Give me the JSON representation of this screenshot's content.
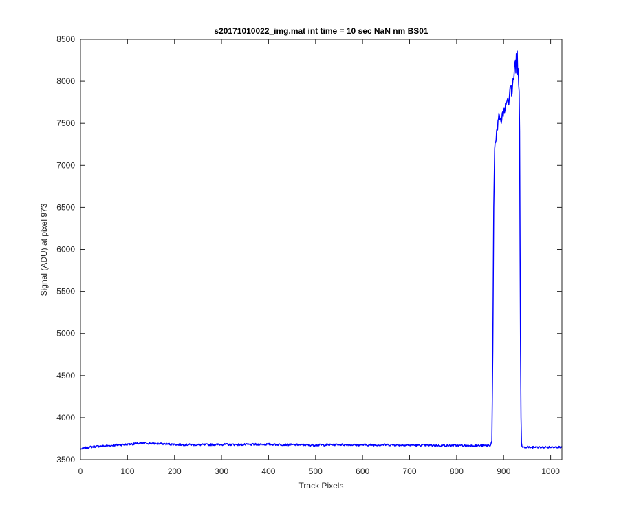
{
  "chart_data": {
    "type": "line",
    "title": "s20171010022_img.mat int time = 10 sec  NaN nm BS01",
    "xlabel": "Track Pixels",
    "ylabel": "Signal (ADU) at pixel 973",
    "xlim": [
      0,
      1024
    ],
    "ylim": [
      3500,
      8500
    ],
    "xticks": [
      0,
      100,
      200,
      300,
      400,
      500,
      600,
      700,
      800,
      900,
      1000
    ],
    "yticks": [
      3500,
      4000,
      4500,
      5000,
      5500,
      6000,
      6500,
      7000,
      7500,
      8000,
      8500
    ],
    "grid": false,
    "series_color": "#0000ff",
    "series": [
      {
        "x": [
          0,
          2,
          20,
          40,
          60,
          80,
          100,
          120,
          140,
          160,
          180,
          200,
          250,
          300,
          350,
          400,
          450,
          500,
          550,
          600,
          650,
          700,
          750,
          800,
          850,
          872,
          875,
          877,
          879,
          881,
          884,
          887,
          890,
          893,
          895,
          897,
          899,
          901,
          903,
          905,
          907,
          909,
          911,
          913,
          915,
          917,
          919,
          921,
          923,
          925,
          926,
          927,
          928,
          929,
          930,
          931,
          932,
          933,
          934,
          935,
          936,
          937,
          938,
          939,
          940,
          941,
          942,
          945,
          950,
          960,
          970,
          980,
          990,
          1000,
          1010,
          1020,
          1024
        ],
        "y": [
          3620,
          3630,
          3650,
          3660,
          3665,
          3675,
          3680,
          3690,
          3695,
          3690,
          3685,
          3680,
          3675,
          3680,
          3678,
          3682,
          3676,
          3672,
          3678,
          3674,
          3676,
          3672,
          3670,
          3668,
          3666,
          3670,
          3720,
          4800,
          6500,
          7200,
          7300,
          7420,
          7620,
          7560,
          7500,
          7620,
          7580,
          7680,
          7650,
          7720,
          7760,
          7800,
          7720,
          7880,
          7940,
          7820,
          7960,
          8020,
          8150,
          8250,
          8100,
          8330,
          8200,
          8360,
          8080,
          8150,
          7960,
          7880,
          7400,
          6000,
          4800,
          4000,
          3700,
          3660,
          3650,
          3645,
          3650,
          3640,
          3650,
          3645,
          3652,
          3644,
          3650,
          3646,
          3654,
          3648,
          3660
        ]
      }
    ]
  }
}
